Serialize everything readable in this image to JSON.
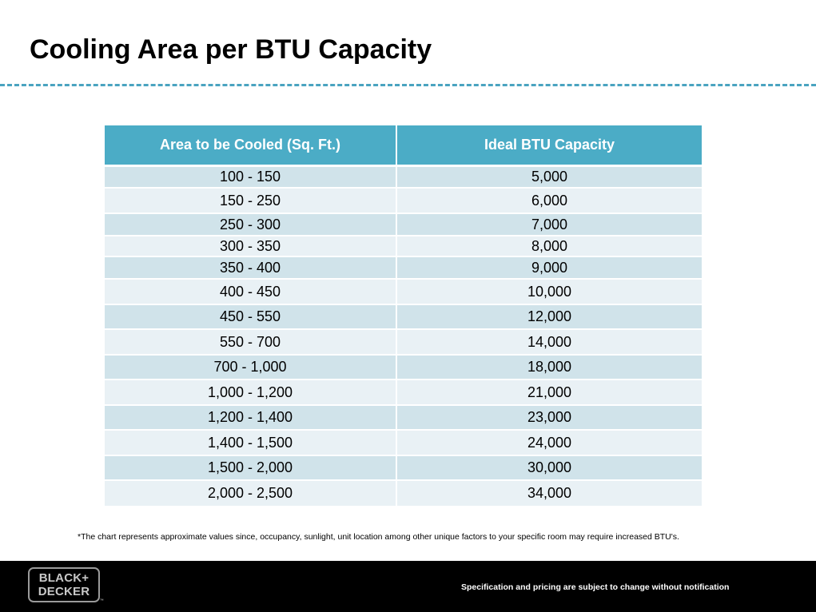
{
  "title": "Cooling Area per BTU Capacity",
  "accent_color": "#4bacc6",
  "table": {
    "headers": [
      "Area to be Cooled (Sq. Ft.)",
      "Ideal BTU Capacity"
    ],
    "rows": [
      [
        "100 - 150",
        "5,000"
      ],
      [
        "150 - 250",
        "6,000"
      ],
      [
        "250 - 300",
        "7,000"
      ],
      [
        "300 - 350",
        "8,000"
      ],
      [
        "350 - 400",
        "9,000"
      ],
      [
        "400 - 450",
        "10,000"
      ],
      [
        "450 - 550",
        "12,000"
      ],
      [
        "550 - 700",
        "14,000"
      ],
      [
        "700 - 1,000",
        "18,000"
      ],
      [
        "1,000 - 1,200",
        "21,000"
      ],
      [
        "1,200 - 1,400",
        "23,000"
      ],
      [
        "1,400 - 1,500",
        "24,000"
      ],
      [
        "1,500 - 2,000",
        "30,000"
      ],
      [
        "2,000 - 2,500",
        "34,000"
      ]
    ]
  },
  "footnote": "*The chart represents approximate values since, occupancy, sunlight, unit location among other unique factors to your specific room may require increased BTU's.",
  "footer": {
    "logo_line1": "BLACK+",
    "logo_line2": "DECKER",
    "logo_trademark": "™",
    "disclaimer": "Specification and pricing are subject to change without notification"
  }
}
